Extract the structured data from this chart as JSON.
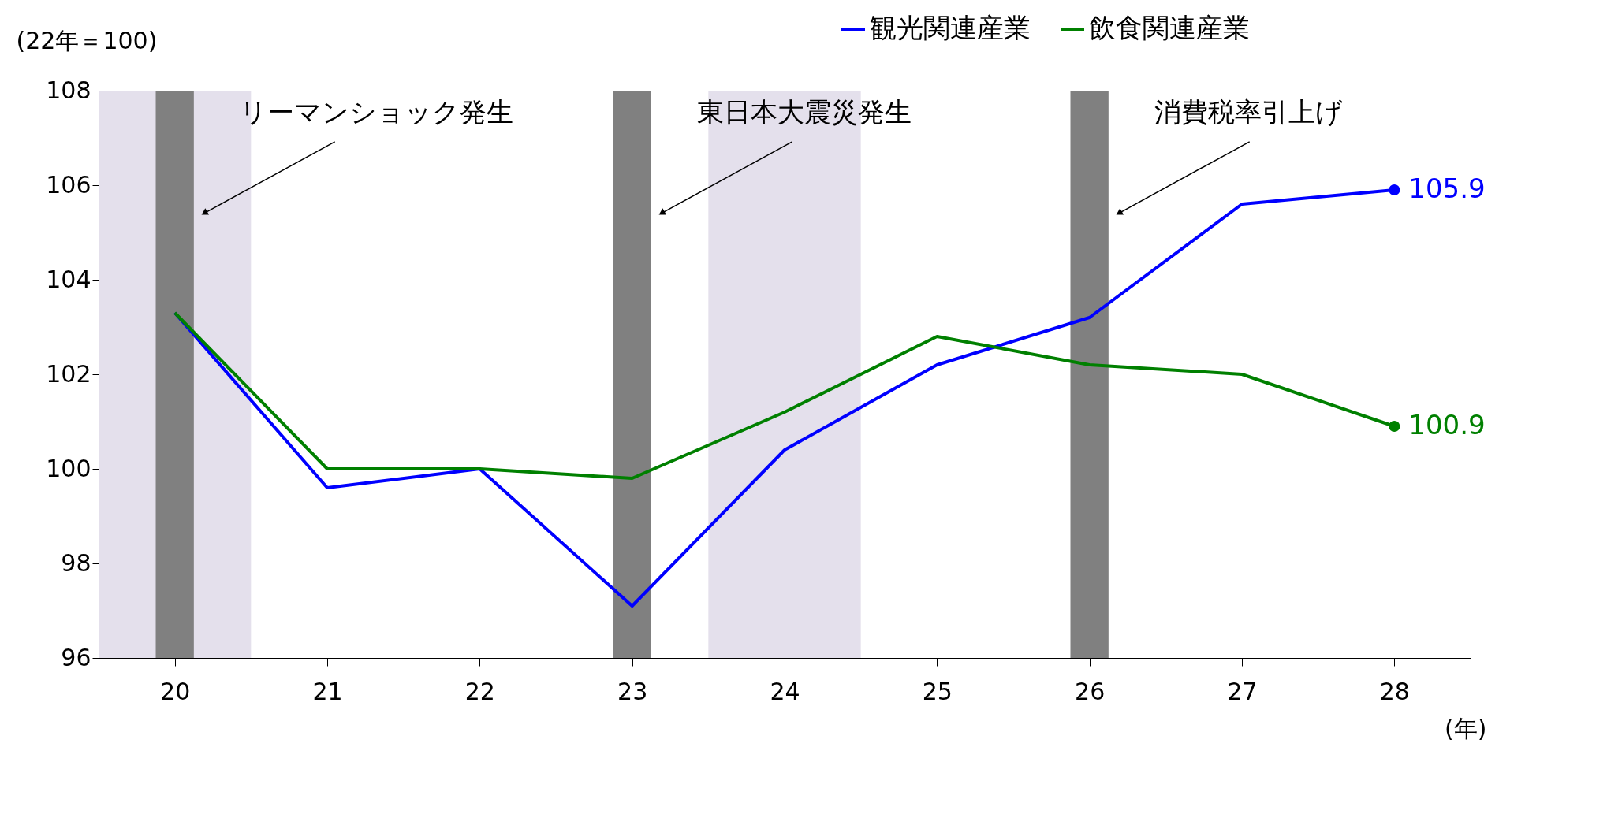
{
  "chart_data": {
    "type": "line",
    "x": [
      20,
      21,
      22,
      23,
      24,
      25,
      26,
      27,
      28
    ],
    "series": [
      {
        "name": "観光関連産業",
        "color": "#0000ff",
        "values": [
          103.3,
          99.6,
          100.0,
          97.1,
          100.4,
          102.2,
          103.2,
          105.6,
          105.9
        ],
        "value_labels": [
          null,
          null,
          null,
          null,
          null,
          null,
          null,
          null,
          "105.9"
        ]
      },
      {
        "name": "飲食関連産業",
        "color": "#008000",
        "values": [
          103.3,
          100.0,
          100.0,
          99.8,
          101.2,
          102.8,
          102.2,
          102.0,
          100.9
        ],
        "value_labels": [
          null,
          null,
          null,
          null,
          null,
          null,
          null,
          null,
          "100.9"
        ]
      }
    ],
    "xlim": [
      19.5,
      28.5
    ],
    "xticks": [
      20,
      21,
      22,
      23,
      24,
      25,
      26,
      27,
      28
    ],
    "ylim": [
      96,
      108
    ],
    "yticks": [
      96,
      98,
      100,
      102,
      104,
      106,
      108
    ],
    "ylabel": "(22年＝100)",
    "xlabel": "(年)",
    "bands": [
      {
        "axis": "x",
        "from": 19.5,
        "to": 20.5,
        "color": "#e4e0ec"
      },
      {
        "axis": "x",
        "from": 23.5,
        "to": 24.5,
        "color": "#e4e0ec"
      },
      {
        "axis": "x",
        "from": 19.875,
        "to": 20.125,
        "color": "#808080",
        "label": "リーマンショック発生"
      },
      {
        "axis": "x",
        "from": 22.875,
        "to": 23.125,
        "color": "#808080",
        "label": "東日本大震災発生"
      },
      {
        "axis": "x",
        "from": 25.875,
        "to": 26.125,
        "color": "#808080",
        "label": "消費税率引上げ"
      }
    ],
    "legend": "top right",
    "grid": false,
    "marker": "none",
    "line_style": "solid"
  }
}
